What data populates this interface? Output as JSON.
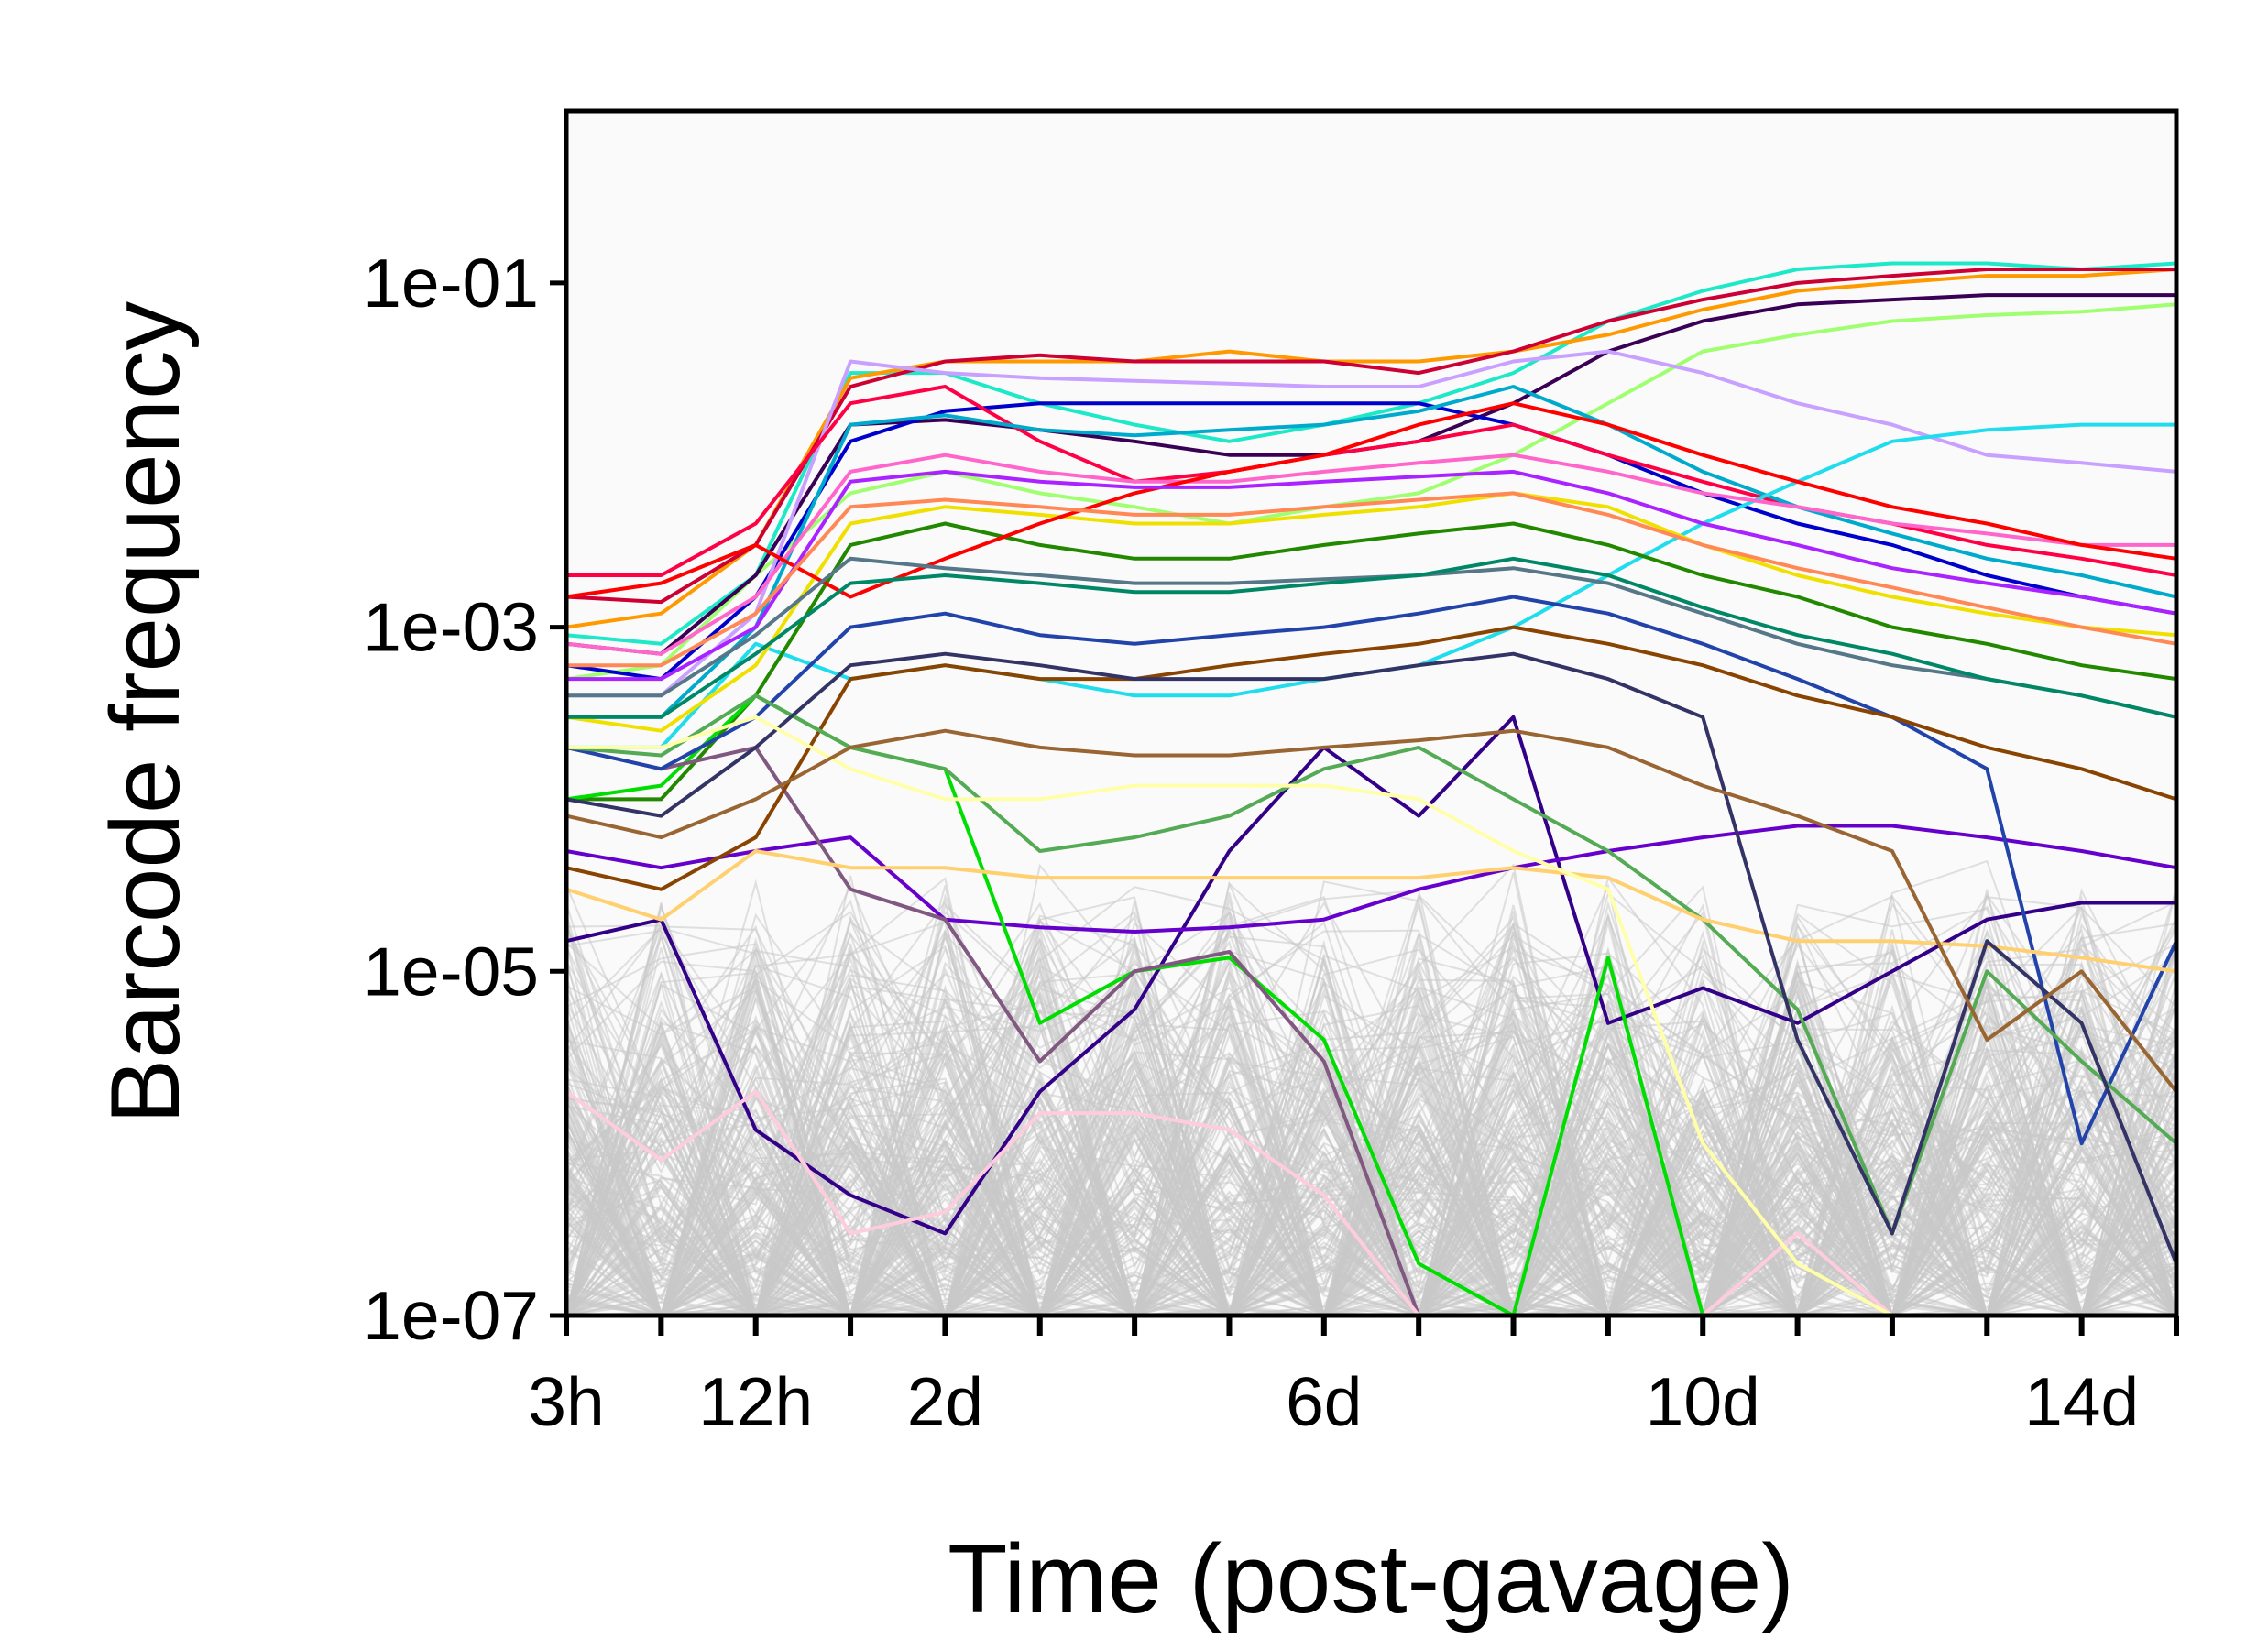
{
  "chart_data": {
    "type": "line",
    "xlabel": "Time (post-gavage)",
    "ylabel": "Barcode frequency",
    "y_scale": "log",
    "ylim": [
      1e-07,
      1.0
    ],
    "x_ticks_count": 18,
    "x_tick_labels": [
      {
        "index": 0,
        "label": "3h"
      },
      {
        "index": 2,
        "label": "12h"
      },
      {
        "index": 4,
        "label": "2d"
      },
      {
        "index": 8,
        "label": "6d"
      },
      {
        "index": 12,
        "label": "10d"
      },
      {
        "index": 16,
        "label": "14d"
      }
    ],
    "y_ticks": [
      {
        "value": 1e-07,
        "label": "1e-07"
      },
      {
        "value": 1e-05,
        "label": "1e-05"
      },
      {
        "value": 0.001,
        "label": "1e-03"
      },
      {
        "value": 0.1,
        "label": "1e-01"
      }
    ],
    "background_color": "#fafafa",
    "grey_color": "#c8c8c8",
    "series_note_count": 300,
    "series": [
      {
        "color": "#1de9c8",
        "values": [
          0.0009,
          0.0008,
          0.002,
          0.03,
          0.03,
          0.02,
          0.015,
          0.012,
          0.015,
          0.02,
          0.03,
          0.06,
          0.09,
          0.12,
          0.13,
          0.13,
          0.12,
          0.13
        ]
      },
      {
        "color": "#ff9900",
        "values": [
          0.001,
          0.0012,
          0.003,
          0.028,
          0.035,
          0.035,
          0.035,
          0.04,
          0.035,
          0.035,
          0.04,
          0.05,
          0.07,
          0.09,
          0.1,
          0.11,
          0.11,
          0.12
        ]
      },
      {
        "color": "#cc0033",
        "values": [
          0.0015,
          0.0014,
          0.003,
          0.025,
          0.035,
          0.038,
          0.035,
          0.035,
          0.035,
          0.03,
          0.04,
          0.06,
          0.08,
          0.1,
          0.11,
          0.12,
          0.12,
          0.12
        ]
      },
      {
        "color": "#a0ff70",
        "values": [
          0.0005,
          0.0006,
          0.002,
          0.006,
          0.008,
          0.006,
          0.005,
          0.004,
          0.005,
          0.006,
          0.01,
          0.02,
          0.04,
          0.05,
          0.06,
          0.065,
          0.068,
          0.075
        ]
      },
      {
        "color": "#3a0055",
        "values": [
          0.0008,
          0.0007,
          0.002,
          0.015,
          0.016,
          0.014,
          0.012,
          0.01,
          0.01,
          0.012,
          0.02,
          0.04,
          0.06,
          0.075,
          0.08,
          0.085,
          0.085,
          0.085
        ]
      },
      {
        "color": "#0000cc",
        "values": [
          0.0006,
          0.0005,
          0.0015,
          0.012,
          0.018,
          0.02,
          0.02,
          0.02,
          0.02,
          0.02,
          0.015,
          0.01,
          0.006,
          0.004,
          0.003,
          0.002,
          0.0015,
          0.0012
        ]
      },
      {
        "color": "#c8a0ff",
        "values": [
          0.0004,
          0.0004,
          0.0012,
          0.035,
          0.03,
          0.028,
          0.027,
          0.026,
          0.025,
          0.025,
          0.035,
          0.04,
          0.03,
          0.02,
          0.015,
          0.01,
          0.009,
          0.008
        ]
      },
      {
        "color": "#ff0044",
        "values": [
          0.002,
          0.002,
          0.004,
          0.02,
          0.025,
          0.012,
          0.007,
          0.008,
          0.01,
          0.012,
          0.015,
          0.01,
          0.007,
          0.005,
          0.004,
          0.003,
          0.0025,
          0.002
        ]
      },
      {
        "color": "#00aacc",
        "values": [
          0.0003,
          0.0003,
          0.001,
          0.015,
          0.017,
          0.014,
          0.013,
          0.014,
          0.015,
          0.018,
          0.025,
          0.015,
          0.008,
          0.005,
          0.0035,
          0.0025,
          0.002,
          0.0015
        ]
      },
      {
        "color": "#20ddee",
        "values": [
          0.0002,
          0.0002,
          0.0008,
          0.0005,
          0.0006,
          0.0005,
          0.0004,
          0.0004,
          0.0005,
          0.0006,
          0.001,
          0.002,
          0.004,
          0.007,
          0.012,
          0.014,
          0.015,
          0.015
        ]
      },
      {
        "color": "#330088",
        "values": [
          1.5e-05,
          2e-05,
          1.2e-06,
          5e-07,
          3e-07,
          2e-06,
          6e-06,
          5e-05,
          0.0002,
          8e-05,
          0.0003,
          5e-06,
          8e-06,
          5e-06,
          1e-05,
          2e-05,
          2.5e-05,
          2.5e-05
        ]
      },
      {
        "color": "#f0e000",
        "values": [
          0.0003,
          0.00025,
          0.0006,
          0.004,
          0.005,
          0.0045,
          0.004,
          0.004,
          0.0045,
          0.005,
          0.006,
          0.005,
          0.003,
          0.002,
          0.0015,
          0.0012,
          0.001,
          0.0009
        ]
      },
      {
        "color": "#228800",
        "values": [
          0.0001,
          0.0001,
          0.0004,
          0.003,
          0.004,
          0.003,
          0.0025,
          0.0025,
          0.003,
          0.0035,
          0.004,
          0.003,
          0.002,
          0.0015,
          0.001,
          0.0008,
          0.0006,
          0.0005
        ]
      },
      {
        "color": "#ff66cc",
        "values": [
          0.0008,
          0.0007,
          0.0015,
          0.008,
          0.01,
          0.008,
          0.007,
          0.007,
          0.008,
          0.009,
          0.01,
          0.008,
          0.006,
          0.005,
          0.004,
          0.0035,
          0.003,
          0.003
        ]
      },
      {
        "color": "#6600cc",
        "values": [
          5e-05,
          4e-05,
          5e-05,
          6e-05,
          2e-05,
          1.8e-05,
          1.7e-05,
          1.8e-05,
          2e-05,
          3e-05,
          4e-05,
          5e-05,
          6e-05,
          7e-05,
          7e-05,
          6e-05,
          5e-05,
          4e-05
        ]
      },
      {
        "color": "#00dd00",
        "values": [
          0.0001,
          0.00012,
          0.0004,
          0.0002,
          0.00015,
          5e-06,
          1e-05,
          1.2e-05,
          4e-06,
          2e-07,
          5e-08,
          1.2e-05,
          1e-07,
          5e-08,
          5e-08,
          5e-08,
          5e-08,
          5e-08
        ]
      },
      {
        "color": "#805880",
        "values": [
          0.0002,
          0.00015,
          0.0002,
          3e-05,
          2e-05,
          3e-06,
          1e-05,
          1.3e-05,
          3e-06,
          1e-07,
          5e-08,
          5e-08,
          5e-08,
          5e-08,
          5e-08,
          5e-08,
          5e-08,
          5e-08
        ]
      },
      {
        "color": "#ffccdd",
        "values": [
          2e-06,
          8e-07,
          2e-06,
          3e-07,
          4e-07,
          1.5e-06,
          1.5e-06,
          1.2e-06,
          5e-07,
          1e-07,
          5e-08,
          5e-08,
          5e-08,
          3e-07,
          5e-08,
          5e-08,
          5e-08,
          5e-08
        ]
      },
      {
        "color": "#ff0000",
        "values": [
          0.0015,
          0.0018,
          0.003,
          0.0015,
          0.0025,
          0.004,
          0.006,
          0.008,
          0.01,
          0.015,
          0.02,
          0.015,
          0.01,
          0.007,
          0.005,
          0.004,
          0.003,
          0.0025
        ]
      },
      {
        "color": "#2244aa",
        "values": [
          0.0002,
          0.00015,
          0.0003,
          0.001,
          0.0012,
          0.0009,
          0.0008,
          0.0009,
          0.001,
          0.0012,
          0.0015,
          0.0012,
          0.0008,
          0.0005,
          0.0003,
          0.00015,
          1e-06,
          1.5e-05
        ]
      },
      {
        "color": "#884400",
        "values": [
          4e-05,
          3e-05,
          6e-05,
          0.0005,
          0.0006,
          0.0005,
          0.0005,
          0.0006,
          0.0007,
          0.0008,
          0.001,
          0.0008,
          0.0006,
          0.0004,
          0.0003,
          0.0002,
          0.00015,
          0.0001
        ]
      },
      {
        "color": "#55aa55",
        "values": [
          0.0002,
          0.00018,
          0.0004,
          0.0002,
          0.00015,
          5e-05,
          6e-05,
          8e-05,
          0.00015,
          0.0002,
          0.0001,
          5e-05,
          2e-05,
          6e-06,
          3e-07,
          1e-05,
          3e-06,
          1e-06
        ]
      },
      {
        "color": "#ffd070",
        "values": [
          3e-05,
          2e-05,
          5e-05,
          4e-05,
          4e-05,
          3.5e-05,
          3.5e-05,
          3.5e-05,
          3.5e-05,
          3.5e-05,
          4e-05,
          3.5e-05,
          2e-05,
          1.5e-05,
          1.5e-05,
          1.4e-05,
          1.2e-05,
          1e-05
        ]
      },
      {
        "color": "#557788",
        "values": [
          0.0004,
          0.0004,
          0.0009,
          0.0025,
          0.0022,
          0.002,
          0.0018,
          0.0018,
          0.0019,
          0.002,
          0.0022,
          0.0018,
          0.0012,
          0.0008,
          0.0006,
          0.0005,
          0.0004,
          0.0003
        ]
      },
      {
        "color": "#aa22ff",
        "values": [
          0.0005,
          0.0005,
          0.001,
          0.007,
          0.008,
          0.007,
          0.0065,
          0.0065,
          0.007,
          0.0075,
          0.008,
          0.006,
          0.004,
          0.003,
          0.0022,
          0.0018,
          0.0015,
          0.0012
        ]
      },
      {
        "color": "#008866",
        "values": [
          0.0003,
          0.0003,
          0.0007,
          0.0018,
          0.002,
          0.0018,
          0.0016,
          0.0016,
          0.0018,
          0.002,
          0.0025,
          0.002,
          0.0013,
          0.0009,
          0.0007,
          0.0005,
          0.0004,
          0.0003
        ]
      },
      {
        "color": "#ff8855",
        "values": [
          0.0006,
          0.0006,
          0.0012,
          0.005,
          0.0055,
          0.005,
          0.0045,
          0.0045,
          0.005,
          0.0055,
          0.006,
          0.0045,
          0.003,
          0.0022,
          0.0017,
          0.0013,
          0.001,
          0.0008
        ]
      },
      {
        "color": "#333366",
        "values": [
          0.0001,
          8e-05,
          0.0002,
          0.0006,
          0.0007,
          0.0006,
          0.0005,
          0.0005,
          0.0005,
          0.0006,
          0.0007,
          0.0005,
          0.0003,
          4e-06,
          3e-07,
          1.5e-05,
          5e-06,
          2e-07
        ]
      },
      {
        "color": "#ffffaa",
        "values": [
          0.0002,
          0.0002,
          0.0003,
          0.00015,
          0.0001,
          0.0001,
          0.00012,
          0.00012,
          0.00012,
          0.0001,
          5e-05,
          3e-05,
          1e-06,
          2e-07,
          5e-08,
          5e-08,
          5e-08,
          5e-08
        ]
      },
      {
        "color": "#996633",
        "values": [
          8e-05,
          6e-05,
          0.0001,
          0.0002,
          0.00025,
          0.0002,
          0.00018,
          0.00018,
          0.0002,
          0.00022,
          0.00025,
          0.0002,
          0.00012,
          8e-05,
          5e-05,
          4e-06,
          1e-05,
          2e-06
        ]
      }
    ]
  }
}
